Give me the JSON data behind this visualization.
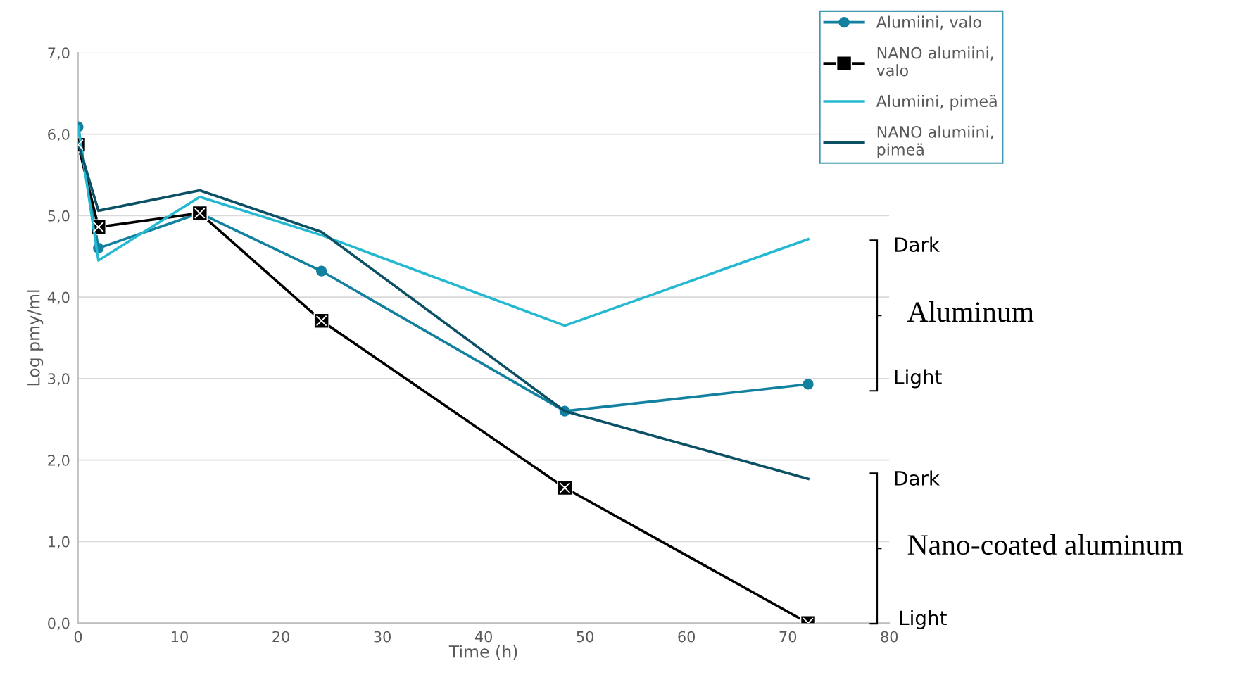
{
  "chart_data": {
    "type": "line",
    "xlabel": "Time (h)",
    "ylabel": "Log pmy/ml",
    "x": [
      0,
      2,
      12,
      24,
      48,
      72
    ],
    "series": [
      {
        "name": "Alumiini, valo",
        "color": "#12809f",
        "marker": "circle",
        "values": [
          6.09,
          4.6,
          5.03,
          4.32,
          2.6,
          2.93
        ]
      },
      {
        "name": "NANO alumiini, valo",
        "color": "#000000",
        "marker": "square",
        "values": [
          5.87,
          4.86,
          5.03,
          3.71,
          1.66,
          0.0
        ]
      },
      {
        "name": "Alumiini, pimeä",
        "color": "#25b9d1",
        "marker": "none",
        "values": [
          6.1,
          4.45,
          5.23,
          4.76,
          3.65,
          4.71
        ]
      },
      {
        "name": "NANO alumiini, pimeä",
        "color": "#0b5065",
        "marker": "none",
        "values": [
          5.89,
          5.06,
          5.31,
          4.8,
          2.6,
          1.77
        ]
      }
    ],
    "xlim": [
      0,
      80
    ],
    "xticks": [
      0,
      10,
      20,
      30,
      40,
      50,
      60,
      70,
      80
    ],
    "ylim": [
      0,
      7
    ],
    "yticks": [
      {
        "value": 0,
        "label": "0,0"
      },
      {
        "value": 1,
        "label": "1,0"
      },
      {
        "value": 2,
        "label": "2,0"
      },
      {
        "value": 3,
        "label": "3,0"
      },
      {
        "value": 4,
        "label": "4,0"
      },
      {
        "value": 5,
        "label": "5,0"
      },
      {
        "value": 6,
        "label": "6,0"
      },
      {
        "value": 7,
        "label": "7,0"
      }
    ],
    "grid": "y",
    "legend": "top right",
    "line_style": "solid",
    "annotations": [
      "Dark",
      "Aluminum",
      "Light",
      "Dark",
      "Nano-coated aluminum",
      "Light"
    ]
  }
}
